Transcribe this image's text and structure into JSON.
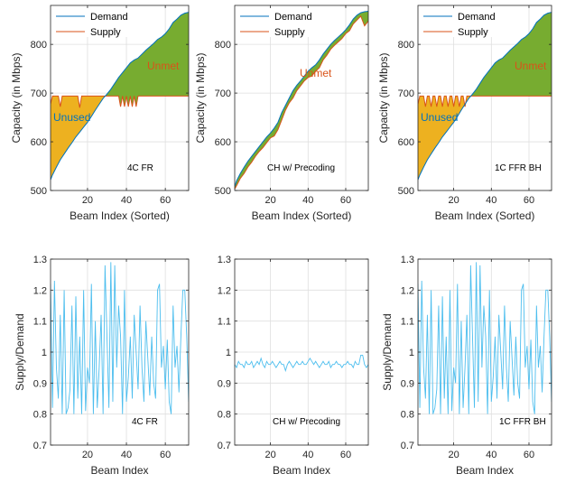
{
  "colors": {
    "demand": "#0072BD",
    "supply": "#D95319",
    "unmet_fill": "#77AC30",
    "unused_fill": "#EDB120",
    "ratio": "#4DBEEE",
    "unmet_text": "#D95319",
    "unused_text": "#0072BD"
  },
  "chart_data": [
    {
      "type": "line",
      "xlabel": "Beam Index (Sorted)",
      "ylabel": "Capacity (in Mbps)",
      "annotation": "4C FR",
      "legend": [
        "Demand",
        "Supply"
      ],
      "legend_position": "top-left",
      "region_labels": {
        "unmet": "Unmet",
        "unused": "Unused"
      },
      "xlim": [
        1,
        72
      ],
      "ylim": [
        500,
        880
      ],
      "xticks": [
        20,
        40,
        60
      ],
      "yticks": [
        500,
        600,
        700,
        800
      ],
      "series": [
        {
          "name": "Demand",
          "x": [
            1,
            2,
            4,
            6,
            8,
            10,
            12,
            14,
            16,
            18,
            20,
            22,
            24,
            26,
            28,
            30,
            32,
            34,
            36,
            38,
            40,
            42,
            44,
            46,
            48,
            50,
            52,
            54,
            56,
            58,
            60,
            62,
            64,
            66,
            68,
            70,
            72
          ],
          "values": [
            522,
            532,
            548,
            563,
            575,
            587,
            598,
            610,
            620,
            630,
            640,
            652,
            665,
            677,
            689,
            698,
            708,
            720,
            732,
            742,
            752,
            762,
            768,
            772,
            780,
            788,
            795,
            802,
            810,
            815,
            822,
            832,
            845,
            852,
            860,
            864,
            866
          ]
        },
        {
          "name": "Supply",
          "x": [
            1,
            2,
            3,
            4,
            5,
            6,
            7,
            8,
            9,
            10,
            11,
            12,
            13,
            14,
            15,
            16,
            17,
            18,
            19,
            20,
            30,
            31,
            32,
            33,
            34,
            35,
            36,
            37,
            38,
            39,
            40,
            41,
            42,
            43,
            44,
            45,
            46,
            47,
            48,
            72
          ],
          "values": [
            678,
            694,
            694,
            694,
            694,
            672,
            694,
            694,
            694,
            694,
            694,
            694,
            694,
            694,
            694,
            670,
            694,
            694,
            694,
            694,
            694,
            694,
            694,
            694,
            694,
            694,
            694,
            672,
            694,
            672,
            694,
            672,
            694,
            672,
            694,
            672,
            694,
            694,
            694,
            694
          ]
        }
      ]
    },
    {
      "type": "line",
      "xlabel": "Beam Index (Sorted)",
      "ylabel": "Capacity (in Mbps)",
      "annotation": "CH w/ Precoding",
      "legend": [
        "Demand",
        "Supply"
      ],
      "legend_position": "top-left",
      "region_labels": {
        "unmet": "Unmet"
      },
      "xlim": [
        1,
        72
      ],
      "ylim": [
        500,
        880
      ],
      "xticks": [
        20,
        40,
        60
      ],
      "yticks": [
        500,
        600,
        700,
        800
      ],
      "series": [
        {
          "name": "Demand",
          "x": [
            1,
            2,
            4,
            6,
            8,
            10,
            12,
            14,
            16,
            18,
            20,
            22,
            24,
            26,
            28,
            30,
            32,
            34,
            36,
            38,
            40,
            42,
            44,
            46,
            48,
            50,
            52,
            54,
            56,
            58,
            60,
            62,
            64,
            66,
            68,
            70,
            72
          ],
          "values": [
            508,
            520,
            535,
            548,
            560,
            570,
            580,
            590,
            600,
            610,
            618,
            628,
            640,
            660,
            675,
            690,
            705,
            716,
            725,
            735,
            745,
            752,
            758,
            768,
            780,
            790,
            800,
            808,
            815,
            822,
            830,
            840,
            852,
            860,
            865,
            867,
            868
          ]
        },
        {
          "name": "Supply",
          "x": [
            1,
            2,
            4,
            6,
            8,
            10,
            12,
            14,
            16,
            18,
            20,
            22,
            24,
            26,
            28,
            30,
            32,
            34,
            36,
            38,
            40,
            42,
            44,
            46,
            48,
            50,
            52,
            54,
            56,
            58,
            60,
            62,
            64,
            66,
            68,
            70,
            72
          ],
          "values": [
            503,
            510,
            525,
            535,
            548,
            558,
            570,
            580,
            588,
            598,
            608,
            612,
            625,
            645,
            665,
            680,
            690,
            705,
            715,
            725,
            732,
            735,
            745,
            752,
            768,
            778,
            790,
            798,
            805,
            812,
            822,
            828,
            842,
            850,
            858,
            838,
            848
          ]
        }
      ]
    },
    {
      "type": "line",
      "xlabel": "Beam Index (Sorted)",
      "ylabel": "Capacity (in Mbps)",
      "annotation": "1C FFR BH",
      "legend": [
        "Demand",
        "Supply"
      ],
      "legend_position": "top-left",
      "region_labels": {
        "unmet": "Unmet",
        "unused": "Unused"
      },
      "xlim": [
        1,
        72
      ],
      "ylim": [
        500,
        880
      ],
      "xticks": [
        20,
        40,
        60
      ],
      "yticks": [
        500,
        600,
        700,
        800
      ],
      "series": [
        {
          "name": "Demand",
          "x": [
            1,
            2,
            4,
            6,
            8,
            10,
            12,
            14,
            16,
            18,
            20,
            22,
            24,
            26,
            28,
            30,
            32,
            34,
            36,
            38,
            40,
            42,
            44,
            46,
            48,
            50,
            52,
            54,
            56,
            58,
            60,
            62,
            64,
            66,
            68,
            70,
            72
          ],
          "values": [
            522,
            532,
            548,
            563,
            575,
            587,
            598,
            610,
            620,
            630,
            640,
            652,
            665,
            677,
            689,
            698,
            708,
            720,
            732,
            742,
            752,
            762,
            768,
            772,
            780,
            788,
            795,
            802,
            810,
            815,
            822,
            832,
            845,
            852,
            860,
            864,
            866
          ]
        },
        {
          "name": "Supply",
          "x": [
            1,
            2,
            3,
            4,
            5,
            6,
            7,
            8,
            9,
            10,
            11,
            12,
            13,
            14,
            15,
            16,
            17,
            18,
            19,
            20,
            21,
            22,
            23,
            24,
            25,
            26,
            27,
            28,
            72
          ],
          "values": [
            678,
            694,
            694,
            694,
            672,
            694,
            694,
            672,
            694,
            694,
            672,
            694,
            694,
            672,
            694,
            694,
            672,
            694,
            694,
            672,
            694,
            694,
            672,
            694,
            694,
            672,
            694,
            694,
            694
          ]
        }
      ]
    },
    {
      "type": "line",
      "xlabel": "Beam Index",
      "ylabel": "Supply/Demand",
      "annotation": "4C FR",
      "xlim": [
        1,
        72
      ],
      "ylim": [
        0.7,
        1.3
      ],
      "xticks": [
        20,
        40,
        60
      ],
      "yticks": [
        0.7,
        0.8,
        0.9,
        1,
        1.1,
        1.2,
        1.3
      ],
      "series": [
        {
          "x": [
            1,
            2,
            3,
            4,
            5,
            6,
            7,
            8,
            9,
            10,
            11,
            12,
            13,
            14,
            15,
            16,
            17,
            18,
            19,
            20,
            21,
            22,
            23,
            24,
            25,
            26,
            27,
            28,
            29,
            30,
            31,
            32,
            33,
            34,
            35,
            36,
            37,
            38,
            39,
            40,
            41,
            42,
            43,
            44,
            45,
            46,
            47,
            48,
            49,
            50,
            51,
            52,
            53,
            54,
            55,
            56,
            57,
            58,
            59,
            60,
            61,
            62,
            63,
            64,
            65,
            66,
            67,
            68,
            69,
            70,
            71,
            72
          ],
          "values": [
            1.22,
            0.82,
            1.23,
            0.95,
            0.85,
            1.12,
            0.8,
            1.2,
            0.8,
            0.82,
            0.88,
            1.15,
            0.8,
            1.18,
            0.85,
            1.05,
            0.8,
            1.2,
            0.81,
            0.95,
            0.9,
            1.22,
            0.8,
            1.1,
            0.82,
            0.95,
            1.12,
            0.8,
            1.28,
            1.05,
            0.82,
            1.29,
            0.84,
            1.28,
            0.95,
            1.15,
            1.05,
            0.8,
            1.2,
            0.84,
            0.92,
            1.05,
            0.85,
            1.12,
            1.0,
            0.88,
            1.15,
            0.95,
            0.84,
            1.1,
            0.98,
            0.86,
            1.05,
            0.9,
            0.85,
            1.2,
            1.22,
            0.95,
            1.02,
            0.88,
            1.04,
            0.84,
            0.8,
            1.15,
            0.95,
            1.02,
            0.87,
            1.05,
            1.2,
            1.2,
            1.05,
            0.84
          ]
        }
      ]
    },
    {
      "type": "line",
      "xlabel": "Beam Index",
      "ylabel": "",
      "annotation": "CH w/ Precoding",
      "xlim": [
        1,
        72
      ],
      "ylim": [
        0.7,
        1.3
      ],
      "xticks": [
        20,
        40,
        60
      ],
      "yticks": [
        0.7,
        0.8,
        0.9,
        1,
        1.1,
        1.2,
        1.3
      ],
      "series": [
        {
          "x": [
            1,
            2,
            3,
            4,
            5,
            6,
            7,
            8,
            9,
            10,
            11,
            12,
            13,
            14,
            15,
            16,
            17,
            18,
            19,
            20,
            21,
            22,
            23,
            24,
            25,
            26,
            27,
            28,
            29,
            30,
            31,
            32,
            33,
            34,
            35,
            36,
            37,
            38,
            39,
            40,
            41,
            42,
            43,
            44,
            45,
            46,
            47,
            48,
            49,
            50,
            51,
            52,
            53,
            54,
            55,
            56,
            57,
            58,
            59,
            60,
            61,
            62,
            63,
            64,
            65,
            66,
            67,
            68,
            69,
            70,
            71,
            72
          ],
          "values": [
            0.96,
            0.95,
            0.97,
            0.96,
            0.96,
            0.95,
            0.97,
            0.96,
            0.96,
            0.97,
            0.95,
            0.96,
            0.97,
            0.96,
            0.98,
            0.96,
            0.95,
            0.97,
            0.96,
            0.96,
            0.97,
            0.96,
            0.95,
            0.96,
            0.97,
            0.96,
            0.96,
            0.94,
            0.96,
            0.97,
            0.96,
            0.95,
            0.96,
            0.97,
            0.96,
            0.96,
            0.97,
            0.96,
            0.96,
            0.97,
            0.98,
            0.97,
            0.96,
            0.97,
            0.96,
            0.95,
            0.96,
            0.97,
            0.96,
            0.96,
            0.97,
            0.95,
            0.96,
            0.96,
            0.97,
            0.96,
            0.96,
            0.95,
            0.96,
            0.96,
            0.97,
            0.96,
            0.96,
            0.95,
            0.97,
            0.96,
            0.96,
            0.99,
            0.99,
            0.96,
            0.95,
            0.96
          ]
        }
      ]
    },
    {
      "type": "line",
      "xlabel": "Beam Index",
      "ylabel": "Supply/Demand",
      "annotation": "1C FFR BH",
      "xlim": [
        1,
        72
      ],
      "ylim": [
        0.7,
        1.3
      ],
      "xticks": [
        20,
        40,
        60
      ],
      "yticks": [
        0.7,
        0.8,
        0.9,
        1,
        1.1,
        1.2,
        1.3
      ],
      "series": [
        {
          "x": [
            1,
            2,
            3,
            4,
            5,
            6,
            7,
            8,
            9,
            10,
            11,
            12,
            13,
            14,
            15,
            16,
            17,
            18,
            19,
            20,
            21,
            22,
            23,
            24,
            25,
            26,
            27,
            28,
            29,
            30,
            31,
            32,
            33,
            34,
            35,
            36,
            37,
            38,
            39,
            40,
            41,
            42,
            43,
            44,
            45,
            46,
            47,
            48,
            49,
            50,
            51,
            52,
            53,
            54,
            55,
            56,
            57,
            58,
            59,
            60,
            61,
            62,
            63,
            64,
            65,
            66,
            67,
            68,
            69,
            70,
            71,
            72
          ],
          "values": [
            1.22,
            0.82,
            1.23,
            0.95,
            0.85,
            1.12,
            0.8,
            1.2,
            0.8,
            0.82,
            0.88,
            1.15,
            0.8,
            1.18,
            0.85,
            1.05,
            0.8,
            1.2,
            0.81,
            0.95,
            0.9,
            1.22,
            0.8,
            1.1,
            0.82,
            0.95,
            1.12,
            0.8,
            1.28,
            1.05,
            0.82,
            1.29,
            0.84,
            1.28,
            0.95,
            1.15,
            1.05,
            0.8,
            1.2,
            0.84,
            0.92,
            1.05,
            0.85,
            1.12,
            1.0,
            0.88,
            1.15,
            0.95,
            0.84,
            1.1,
            0.98,
            0.86,
            1.05,
            0.9,
            0.85,
            1.2,
            1.22,
            0.95,
            1.02,
            0.88,
            1.04,
            0.84,
            0.8,
            1.15,
            0.95,
            1.02,
            0.87,
            1.05,
            1.2,
            1.2,
            1.05,
            0.84
          ]
        }
      ]
    }
  ]
}
